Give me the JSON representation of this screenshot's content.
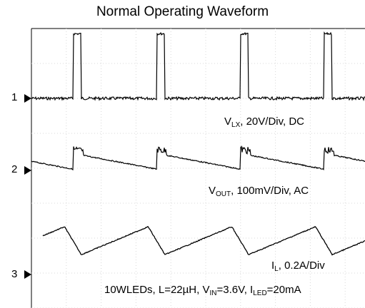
{
  "chart_data": {
    "type": "line",
    "title": "Normal Operating Waveform",
    "channel_markers": [
      "1",
      "2",
      "3"
    ],
    "series": [
      {
        "name_parts": [
          "V",
          "LX",
          ", 20V/Div, DC"
        ],
        "kind": "pulse",
        "high_level_divisions": 1.85,
        "pulse_period_divisions": 2.4,
        "pulse_width_divisions": 0.22,
        "first_pulse_divisions": 1.2
      },
      {
        "name_parts": [
          "V",
          "OUT",
          ", 100mV/Div, AC"
        ],
        "kind": "ripple",
        "ripple_divisions": 0.5,
        "period_divisions": 2.4
      },
      {
        "name_parts": [
          "I",
          "L",
          ", 0.2A/Div"
        ],
        "kind": "triangle",
        "peak_to_peak_divisions": 0.8,
        "period_divisions": 2.4
      }
    ],
    "footer_parts": [
      "10WLEDs, L=22µH, V",
      "IN",
      "=3.6V, I",
      "LED",
      "=20mA"
    ],
    "grid": true,
    "divisions_x": 10,
    "divisions_y": 8
  }
}
